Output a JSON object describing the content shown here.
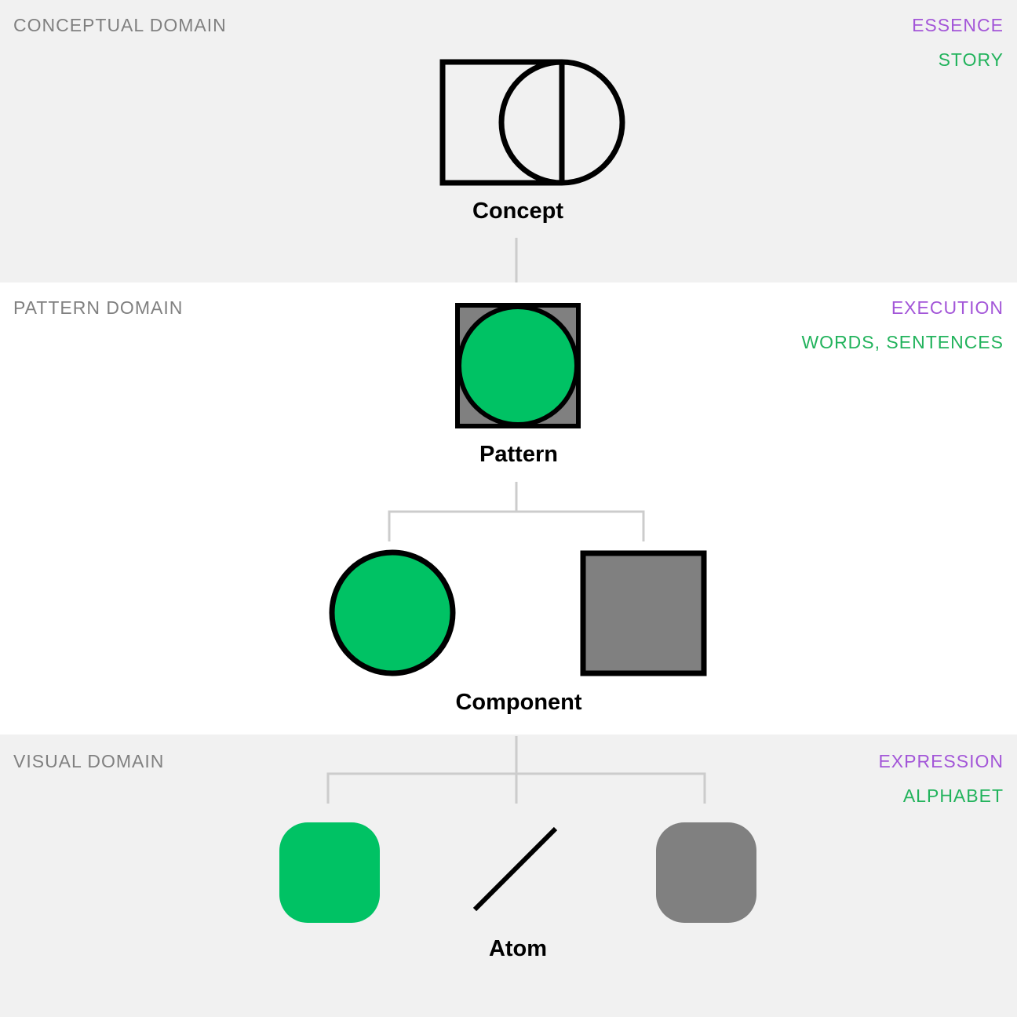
{
  "colors": {
    "accent_purple": "#a356d8",
    "accent_green": "#22b35c",
    "shape_green": "#00c264",
    "shape_gray": "#808080",
    "band_gray": "#f1f1f1",
    "connector": "#cccccc"
  },
  "domains": {
    "conceptual": {
      "label": "CONCEPTUAL DOMAIN",
      "tag_primary": "ESSENCE",
      "tag_secondary": "STORY"
    },
    "pattern": {
      "label": "PATTERN DOMAIN",
      "tag_primary": "EXECUTION",
      "tag_secondary": "WORDS, SENTENCES"
    },
    "visual": {
      "label": "VISUAL DOMAIN",
      "tag_primary": "EXPRESSION",
      "tag_secondary": "ALPHABET"
    }
  },
  "nodes": {
    "concept": {
      "label": "Concept",
      "icon": "square-with-half-circle-icon"
    },
    "pattern": {
      "label": "Pattern",
      "icon": "circle-in-square-icon"
    },
    "component": {
      "label": "Component",
      "shapes": [
        "green-circle-icon",
        "gray-square-icon"
      ]
    },
    "atom": {
      "label": "Atom",
      "shapes": [
        "green-rounded-square-icon",
        "diagonal-line-icon",
        "gray-rounded-square-icon"
      ]
    }
  }
}
